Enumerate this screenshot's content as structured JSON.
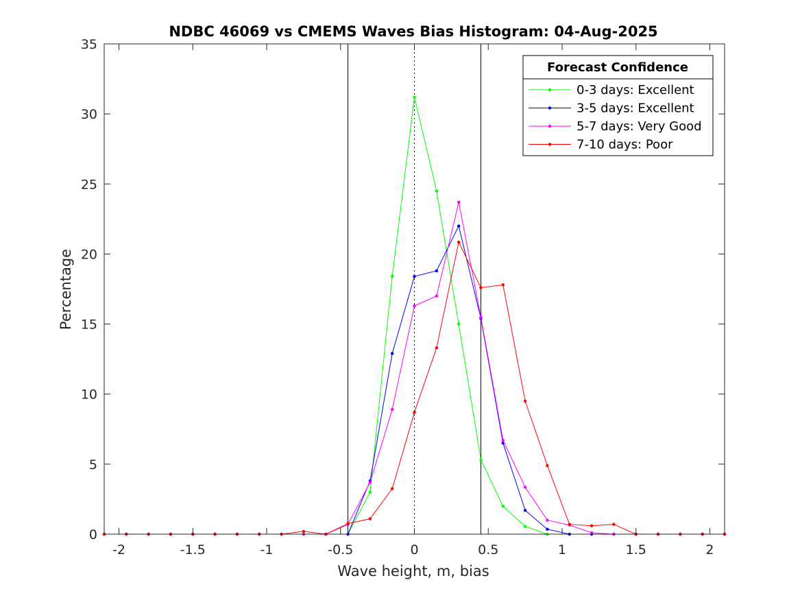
{
  "chart_data": {
    "type": "line",
    "title": "NDBC 46069 vs CMEMS Waves Bias Histogram: 04-Aug-2025",
    "xlabel": "Wave height, m, bias",
    "ylabel": "Percentage",
    "xlim": [
      -2.1,
      2.1
    ],
    "ylim": [
      0,
      35
    ],
    "xticks": [
      -2,
      -1.5,
      -1,
      -0.5,
      0,
      0.5,
      1,
      1.5,
      2
    ],
    "xtick_labels": [
      "-2",
      "-1.5",
      "-1",
      "-0.5",
      "0",
      "0.5",
      "1",
      "1.5",
      "2"
    ],
    "yticks": [
      0,
      5,
      10,
      15,
      20,
      25,
      30,
      35
    ],
    "ytick_labels": [
      "0",
      "5",
      "10",
      "15",
      "20",
      "25",
      "30",
      "35"
    ],
    "vertical_lines": [
      {
        "x": -0.45,
        "style": "solid"
      },
      {
        "x": 0,
        "style": "dotted"
      },
      {
        "x": 0.45,
        "style": "solid"
      }
    ],
    "legend": {
      "title": "Forecast Confidence",
      "position": "top-right"
    },
    "x": [
      -2.1,
      -1.95,
      -1.8,
      -1.65,
      -1.5,
      -1.35,
      -1.2,
      -1.05,
      -0.9,
      -0.75,
      -0.6,
      -0.45,
      -0.3,
      -0.15,
      0,
      0.15,
      0.3,
      0.45,
      0.6,
      0.75,
      0.9,
      1.05,
      1.2,
      1.35,
      1.5,
      1.65,
      1.8,
      1.95,
      2.1
    ],
    "series": [
      {
        "name": "0-3 days: Excellent",
        "color": "#00ff00",
        "values": [
          0,
          0,
          0,
          0,
          0,
          0,
          0,
          0,
          0,
          0,
          0,
          0,
          3.0,
          18.4,
          31.2,
          24.5,
          15.0,
          5.3,
          2.0,
          0.55,
          0,
          0,
          0,
          0,
          0,
          0,
          0,
          0,
          0
        ]
      },
      {
        "name": "3-5 days: Excellent",
        "color": "#0000ff",
        "values": [
          0,
          0,
          0,
          0,
          0,
          0,
          0,
          0,
          0,
          0,
          0,
          0,
          3.8,
          12.9,
          18.4,
          18.8,
          22.0,
          15.4,
          6.5,
          1.7,
          0.35,
          0,
          0,
          0,
          0,
          0,
          0,
          0,
          0
        ]
      },
      {
        "name": "5-7 days: Very Good",
        "color": "#ff00ff",
        "values": [
          0,
          0,
          0,
          0,
          0,
          0,
          0,
          0,
          0,
          0,
          0,
          0.7,
          3.7,
          8.9,
          16.3,
          17.0,
          23.7,
          15.5,
          6.7,
          3.35,
          1.0,
          0.65,
          0.1,
          0,
          0,
          0,
          0,
          0,
          0
        ]
      },
      {
        "name": "7-10 days: Poor",
        "color": "#ff0000",
        "values": [
          0,
          0,
          0,
          0,
          0,
          0,
          0,
          0,
          0,
          0.2,
          0,
          0.75,
          1.1,
          3.25,
          8.7,
          13.3,
          20.85,
          17.6,
          17.8,
          9.5,
          4.9,
          0.7,
          0.6,
          0.7,
          0,
          0,
          0,
          0,
          0
        ]
      }
    ]
  }
}
